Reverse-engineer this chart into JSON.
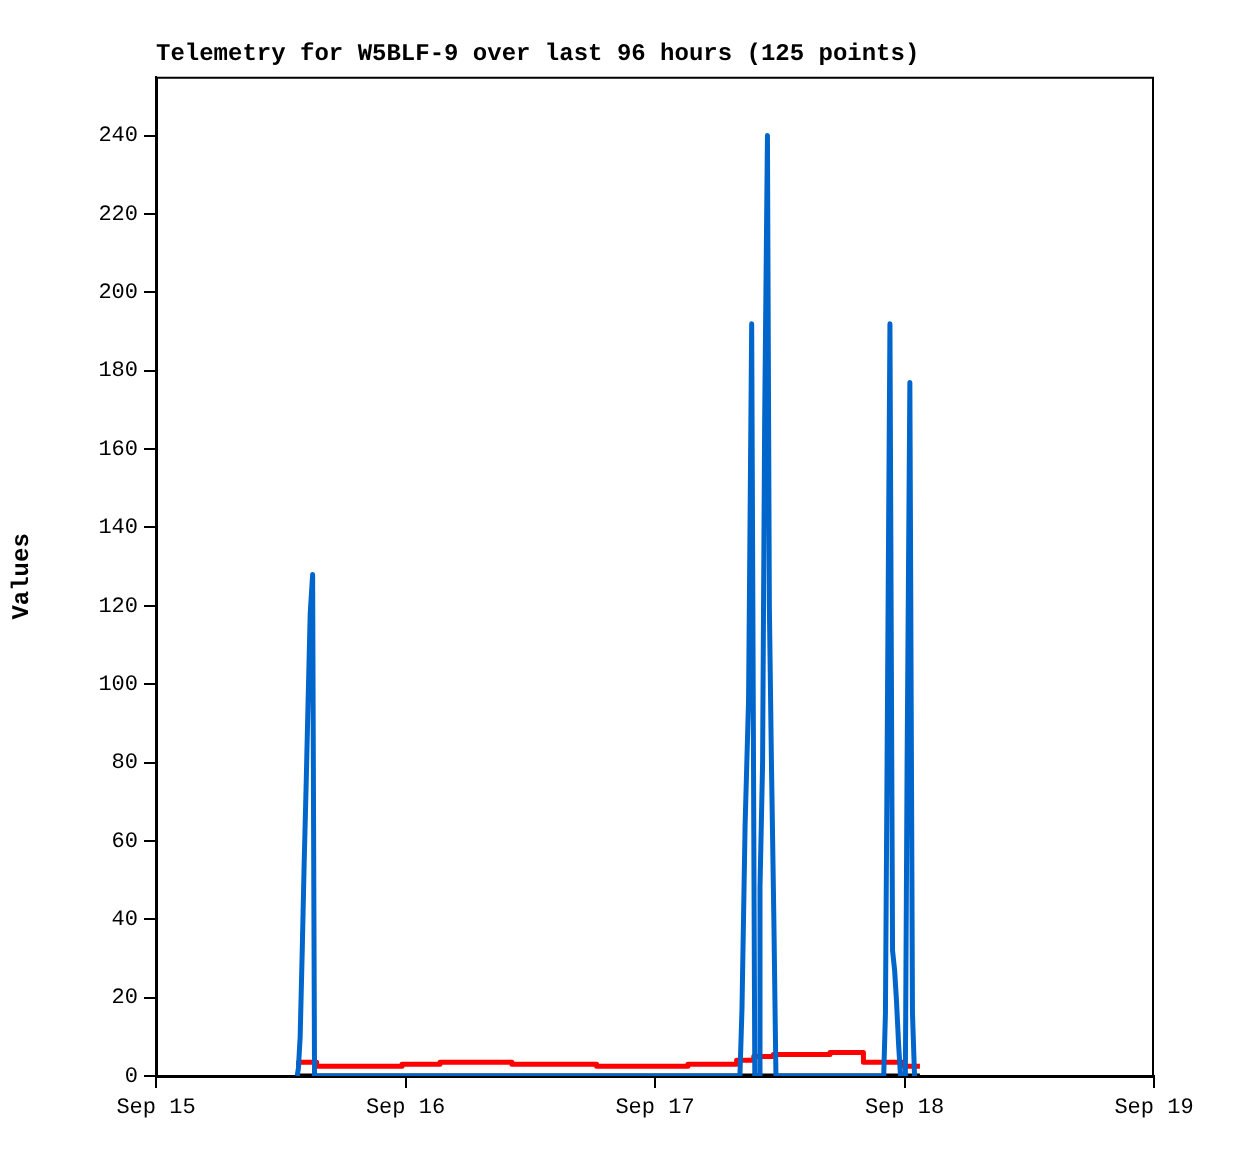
{
  "chart_data": {
    "type": "line",
    "title": "Telemetry for W5BLF-9 over last 96 hours (125 points)",
    "ylabel": "Values",
    "xlim": [
      "--09-15",
      "--09-19"
    ],
    "xticks": [
      {
        "value": "--09-15",
        "label": "Sep 15"
      },
      {
        "value": "--09-16",
        "label": "Sep 16"
      },
      {
        "value": "--09-17",
        "label": "Sep 17"
      },
      {
        "value": "--09-18",
        "label": "Sep 18"
      },
      {
        "value": "--09-19",
        "label": "Sep 19"
      }
    ],
    "ylim": [
      0,
      255
    ],
    "yticks": [
      0,
      20,
      40,
      60,
      80,
      100,
      120,
      140,
      160,
      180,
      200,
      220,
      240
    ],
    "grid": false,
    "legend": false,
    "marker": "none",
    "line_style": "solid",
    "series": [
      {
        "color": "#0066cc",
        "x": [
          "--09-15T13:35",
          "--09-15T13:42",
          "--09-15T13:52",
          "--09-15T14:04",
          "--09-15T14:15",
          "--09-15T14:27",
          "--09-15T14:38",
          "--09-15T14:50",
          "--09-15T15:04",
          "--09-15T15:15",
          "--09-17T08:10",
          "--09-17T08:22",
          "--09-17T08:40",
          "--09-17T09:00",
          "--09-17T09:18",
          "--09-17T09:36",
          "--09-17T09:58",
          "--09-17T10:06",
          "--09-17T10:21",
          "--09-17T10:33",
          "--09-17T10:49",
          "--09-17T11:00",
          "--09-17T11:12",
          "--09-17T11:26",
          "--09-17T11:38",
          "--09-17T22:00",
          "--09-17T22:10",
          "--09-17T22:36",
          "--09-17T22:51",
          "--09-17T23:03",
          "--09-17T23:14",
          "--09-17T23:26",
          "--09-17T23:37",
          "--09-18T00:05",
          "--09-18T00:15",
          "--09-18T00:31",
          "--09-18T00:46",
          "--09-18T00:58"
        ],
        "values": [
          0,
          2,
          10,
          32,
          54,
          75,
          96,
          118,
          128,
          0,
          0,
          17,
          64,
          96,
          192,
          0,
          0,
          48,
          80,
          168,
          240,
          120,
          80,
          40,
          0,
          0,
          16,
          192,
          32,
          27,
          19,
          8,
          0,
          0,
          80,
          177,
          16,
          0
        ]
      },
      {
        "type": "step",
        "color": "#ff0000",
        "x": [
          "--09-15T13:43",
          "--09-15T15:27",
          "--09-15T23:40",
          "--09-16T03:19",
          "--09-16T10:14",
          "--09-16T18:23",
          "--09-17T03:10",
          "--09-17T07:51",
          "--09-17T09:30",
          "--09-17T11:23",
          "--09-17T16:50",
          "--09-17T20:03",
          "--09-17T23:53",
          "--09-18T01:29"
        ],
        "values": [
          2.5,
          3.5,
          2.5,
          3,
          3.5,
          3,
          2.5,
          3,
          4,
          5,
          5.5,
          6,
          3.5,
          2.5
        ]
      },
      {
        "color": "#000000",
        "x": [
          "--09-15T13:43",
          "--09-18T01:29"
        ],
        "values": [
          0,
          0
        ]
      }
    ]
  }
}
